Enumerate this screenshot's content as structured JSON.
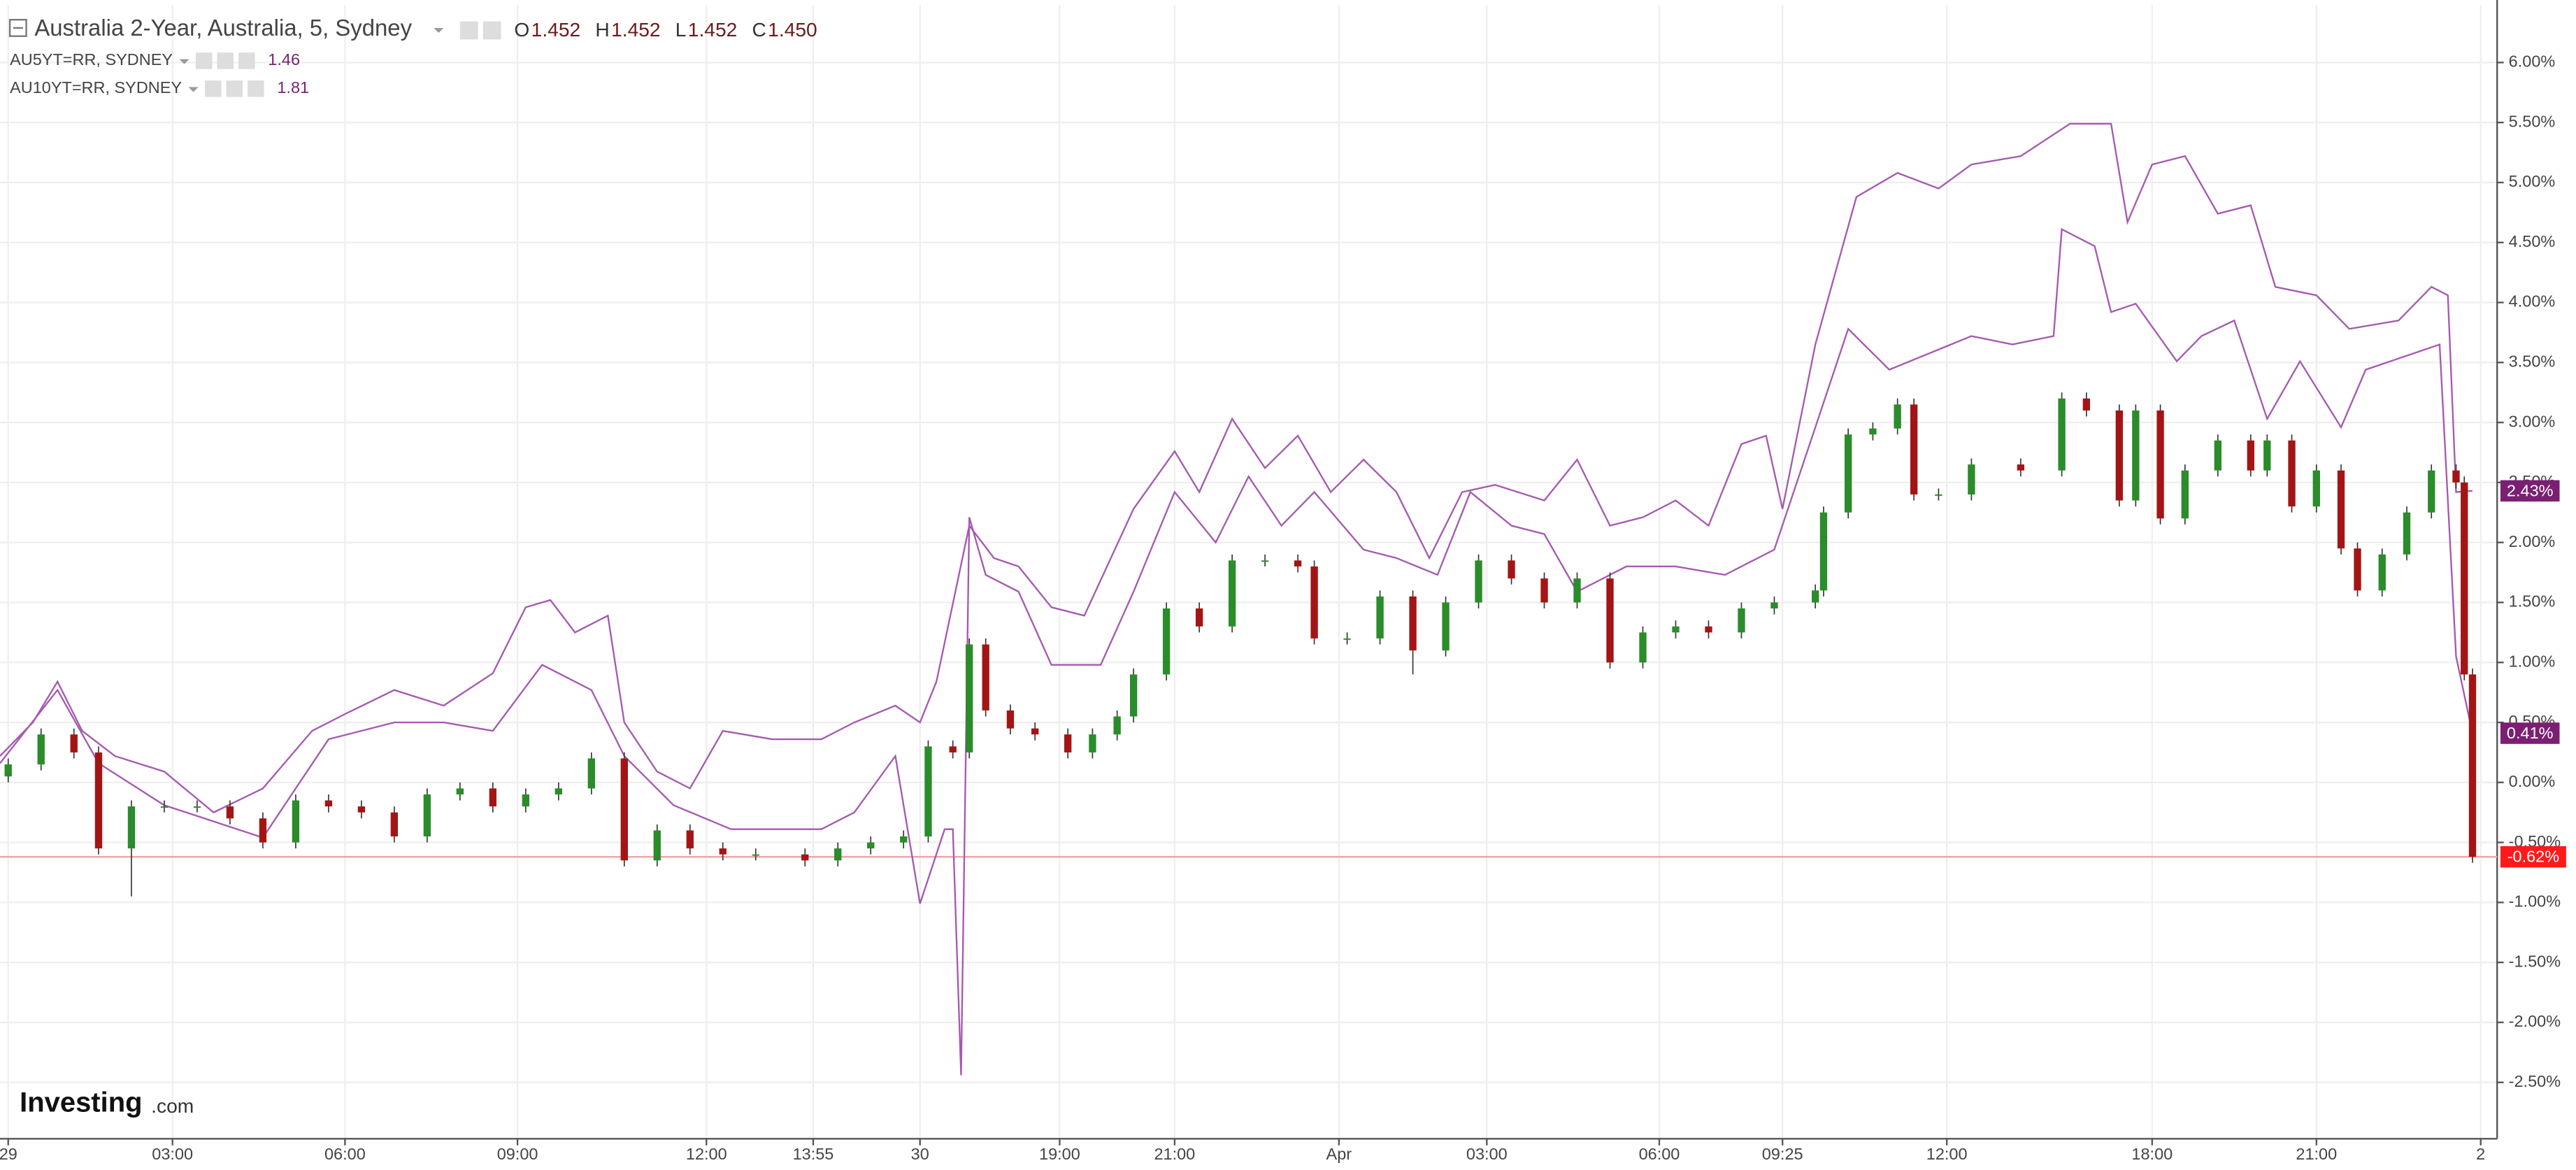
{
  "chart_data": {
    "type": "candlestick",
    "title": "Australia 2-Year, Australia, 5, Sydney",
    "ohlc": [
      {
        "key": "O",
        "value": "1.452"
      },
      {
        "key": "H",
        "value": "1.452"
      },
      {
        "key": "L",
        "value": "1.452"
      },
      {
        "key": "C",
        "value": "1.450"
      }
    ],
    "logo": [
      "Investing",
      ".com"
    ],
    "grid": true,
    "xlim": [
      0,
      304
    ],
    "xticks": [
      {
        "value": 1,
        "label": "29"
      },
      {
        "value": 21,
        "label": "03:00"
      },
      {
        "value": 42,
        "label": "06:00"
      },
      {
        "value": 63,
        "label": "09:00"
      },
      {
        "value": 86,
        "label": "12:00"
      },
      {
        "value": 99,
        "label": "13:55"
      },
      {
        "value": 112,
        "label": "30"
      },
      {
        "value": 129,
        "label": "19:00"
      },
      {
        "value": 143,
        "label": "21:00"
      },
      {
        "value": 163,
        "label": "Apr"
      },
      {
        "value": 181,
        "label": "03:00"
      },
      {
        "value": 202,
        "label": "06:00"
      },
      {
        "value": 217,
        "label": "09:25"
      },
      {
        "value": 237,
        "label": "12:00"
      },
      {
        "value": 262,
        "label": "18:00"
      },
      {
        "value": 282,
        "label": "21:00"
      },
      {
        "value": 302,
        "label": "2"
      }
    ],
    "ylim": [
      -2.97,
      6.48
    ],
    "yticks": [
      {
        "value": 6,
        "label": "6.00%"
      },
      {
        "value": 5.5,
        "label": "5.50%"
      },
      {
        "value": 5,
        "label": "5.00%"
      },
      {
        "value": 4.5,
        "label": "4.50%"
      },
      {
        "value": 4,
        "label": "4.00%"
      },
      {
        "value": 3.5,
        "label": "3.50%"
      },
      {
        "value": 3,
        "label": "3.00%"
      },
      {
        "value": 2.5,
        "label": "2.50%"
      },
      {
        "value": 2,
        "label": "2.00%"
      },
      {
        "value": 1.5,
        "label": "1.50%"
      },
      {
        "value": 1,
        "label": "1.00%"
      },
      {
        "value": 0.5,
        "label": "0.50%"
      },
      {
        "value": 0,
        "label": "0.00%"
      },
      {
        "value": -0.5,
        "label": "-0.50%"
      },
      {
        "value": -1,
        "label": "-1.00%"
      },
      {
        "value": -1.5,
        "label": "-1.50%"
      },
      {
        "value": -2,
        "label": "-2.00%"
      },
      {
        "value": -2.5,
        "label": "-2.50%"
      }
    ],
    "candles": {
      "up_color": "#2a8c2a",
      "down_color": "#a31515",
      "last_label": "-0.62%",
      "last_color": "#ff1a1a",
      "x": [
        1,
        5,
        9,
        12,
        16,
        20,
        24,
        28,
        32,
        36,
        40,
        44,
        48,
        52,
        56,
        60,
        64,
        68,
        72,
        76,
        80,
        84,
        88,
        92,
        98,
        102,
        106,
        110,
        113,
        116,
        118,
        120,
        123,
        126,
        130,
        133,
        136,
        138,
        142,
        146,
        150,
        154,
        158,
        160,
        164,
        168,
        172,
        176,
        180,
        184,
        188,
        192,
        196,
        200,
        204,
        208,
        212,
        216,
        221,
        222,
        225,
        228,
        231,
        233,
        236,
        240,
        246,
        251,
        254,
        258,
        260,
        263,
        266,
        270,
        274,
        276,
        279,
        282,
        285,
        287,
        290,
        293,
        296,
        299,
        300,
        301
      ],
      "open": [
        0.05,
        0.15,
        0.4,
        0.25,
        -0.55,
        -0.2,
        -0.2,
        -0.2,
        -0.3,
        -0.5,
        -0.15,
        -0.2,
        -0.25,
        -0.45,
        -0.1,
        -0.05,
        -0.2,
        -0.1,
        -0.05,
        0.2,
        -0.65,
        -0.4,
        -0.55,
        -0.6,
        -0.6,
        -0.65,
        -0.55,
        -0.5,
        -0.45,
        0.3,
        0.25,
        1.15,
        0.6,
        0.45,
        0.4,
        0.25,
        0.4,
        0.55,
        0.9,
        1.45,
        1.3,
        1.85,
        1.85,
        1.8,
        1.2,
        1.2,
        1.55,
        1.1,
        1.5,
        1.85,
        1.7,
        1.5,
        1.7,
        1.0,
        1.25,
        1.3,
        1.25,
        1.45,
        1.5,
        1.6,
        2.25,
        2.9,
        2.95,
        3.15,
        2.4,
        2.4,
        2.65,
        2.6,
        3.2,
        3.1,
        2.35,
        3.1,
        2.2,
        2.6,
        2.85,
        2.6,
        2.85,
        2.3,
        2.6,
        1.95,
        1.6,
        1.9,
        2.25,
        2.6,
        2.5,
        0.9
      ],
      "high": [
        0.2,
        0.45,
        0.45,
        0.3,
        -0.15,
        -0.15,
        -0.15,
        -0.15,
        -0.25,
        -0.1,
        -0.1,
        -0.15,
        -0.2,
        -0.05,
        0,
        0,
        -0.05,
        0,
        0.25,
        0.25,
        -0.35,
        -0.35,
        -0.5,
        -0.55,
        -0.55,
        -0.5,
        -0.45,
        -0.4,
        0.35,
        0.35,
        1.2,
        1.2,
        0.65,
        0.5,
        0.45,
        0.45,
        0.6,
        0.95,
        1.5,
        1.5,
        1.9,
        1.9,
        1.9,
        1.85,
        1.25,
        1.6,
        1.6,
        1.55,
        1.9,
        1.9,
        1.75,
        1.75,
        1.75,
        1.3,
        1.35,
        1.35,
        1.5,
        1.55,
        1.65,
        2.3,
        2.95,
        3.0,
        3.2,
        3.2,
        2.45,
        2.7,
        2.7,
        3.25,
        3.25,
        3.15,
        3.15,
        3.15,
        2.65,
        2.9,
        2.9,
        2.9,
        2.9,
        2.65,
        2.65,
        2.0,
        1.95,
        2.3,
        2.65,
        2.65,
        2.55,
        0.95
      ],
      "low": [
        0,
        0.1,
        0.2,
        -0.6,
        -0.95,
        -0.25,
        -0.25,
        -0.35,
        -0.55,
        -0.55,
        -0.25,
        -0.3,
        -0.5,
        -0.5,
        -0.15,
        -0.25,
        -0.25,
        -0.15,
        -0.1,
        -0.7,
        -0.7,
        -0.6,
        -0.65,
        -0.65,
        -0.7,
        -0.7,
        -0.6,
        -0.55,
        -0.5,
        0.2,
        0.2,
        0.55,
        0.4,
        0.35,
        0.2,
        0.2,
        0.35,
        0.5,
        0.85,
        1.25,
        1.25,
        1.8,
        1.75,
        1.15,
        1.15,
        1.15,
        0.9,
        1.05,
        1.45,
        1.65,
        1.45,
        1.45,
        0.95,
        0.95,
        1.2,
        1.2,
        1.2,
        1.4,
        1.45,
        1.55,
        2.2,
        2.85,
        2.9,
        2.35,
        2.35,
        2.35,
        2.55,
        2.55,
        3.05,
        2.3,
        2.3,
        2.15,
        2.15,
        2.55,
        2.55,
        2.55,
        2.25,
        2.25,
        1.9,
        1.55,
        1.55,
        1.85,
        2.2,
        2.45,
        0.85,
        -0.67
      ],
      "close": [
        0.15,
        0.4,
        0.25,
        -0.55,
        -0.2,
        -0.2,
        -0.2,
        -0.3,
        -0.5,
        -0.15,
        -0.2,
        -0.25,
        -0.45,
        -0.1,
        -0.05,
        -0.2,
        -0.1,
        -0.05,
        0.2,
        -0.65,
        -0.4,
        -0.55,
        -0.6,
        -0.6,
        -0.65,
        -0.55,
        -0.5,
        -0.45,
        0.3,
        0.25,
        1.15,
        0.6,
        0.45,
        0.4,
        0.25,
        0.4,
        0.55,
        0.9,
        1.45,
        1.3,
        1.85,
        1.85,
        1.8,
        1.2,
        1.2,
        1.55,
        1.1,
        1.5,
        1.85,
        1.7,
        1.5,
        1.7,
        1.0,
        1.25,
        1.3,
        1.25,
        1.45,
        1.5,
        1.6,
        2.25,
        2.9,
        2.95,
        3.15,
        2.4,
        2.4,
        2.65,
        2.6,
        3.2,
        3.1,
        2.35,
        3.1,
        2.2,
        2.6,
        2.85,
        2.6,
        2.85,
        2.3,
        2.6,
        1.95,
        1.6,
        1.9,
        2.25,
        2.6,
        2.5,
        0.9,
        -0.62
      ]
    },
    "series": [
      {
        "name": "AU5YT=RR, SYDNEY",
        "legend_value": "1.46",
        "color": "#a55ab0",
        "last_label": "0.41%",
        "label_color": "#7b1f73",
        "x": [
          0,
          7,
          12,
          20,
          32,
          40,
          48,
          54,
          60,
          66,
          72,
          76,
          82,
          89,
          94,
          100,
          104,
          109,
          111,
          112,
          115,
          116,
          117,
          118,
          120,
          124,
          128,
          134,
          138,
          143,
          148,
          152,
          156,
          160,
          166,
          170,
          175,
          179,
          184,
          188,
          192,
          198,
          204,
          210,
          216,
          221,
          225,
          230,
          235,
          240,
          245,
          250,
          251,
          255,
          257,
          260,
          265,
          268,
          272,
          276,
          280,
          285,
          288,
          294,
          297,
          299,
          301
        ],
        "values": [
          0.16,
          0.77,
          0.16,
          -0.19,
          -0.46,
          0.36,
          0.5,
          0.5,
          0.43,
          0.98,
          0.77,
          0.22,
          -0.19,
          -0.39,
          -0.39,
          -0.39,
          -0.25,
          0.22,
          -0.6,
          -1.01,
          -0.39,
          -0.39,
          -2.44,
          2.21,
          1.73,
          1.59,
          0.98,
          0.98,
          1.59,
          2.42,
          2.0,
          2.55,
          2.14,
          2.42,
          1.94,
          1.87,
          1.73,
          2.42,
          2.14,
          2.07,
          1.59,
          1.8,
          1.8,
          1.73,
          1.94,
          2.96,
          3.78,
          3.44,
          3.58,
          3.72,
          3.65,
          3.72,
          4.61,
          4.47,
          3.92,
          3.99,
          3.51,
          3.72,
          3.85,
          3.03,
          3.51,
          2.96,
          3.44,
          3.58,
          3.65,
          1.05,
          0.41
        ]
      },
      {
        "name": "AU10YT=RR, SYDNEY",
        "legend_value": "1.81",
        "color": "#a55ab0",
        "last_label": "2.43%",
        "label_color": "#7b1f73",
        "x": [
          0,
          4,
          7,
          10,
          14,
          20,
          26,
          32,
          38,
          42,
          48,
          54,
          60,
          64,
          67,
          70,
          74,
          76,
          80,
          84,
          88,
          94,
          100,
          104,
          109,
          112,
          114,
          118,
          121,
          124,
          128,
          132,
          138,
          143,
          146,
          150,
          154,
          158,
          162,
          166,
          170,
          174,
          178,
          182,
          188,
          192,
          196,
          200,
          204,
          208,
          212,
          215,
          217,
          221,
          226,
          231,
          236,
          240,
          246,
          252,
          257,
          259,
          262,
          266,
          270,
          274,
          277,
          282,
          286,
          292,
          296,
          298,
          299,
          301
        ],
        "values": [
          0.22,
          0.5,
          0.84,
          0.43,
          0.22,
          0.09,
          -0.25,
          -0.05,
          0.43,
          0.57,
          0.77,
          0.64,
          0.91,
          1.46,
          1.52,
          1.25,
          1.39,
          0.5,
          0.09,
          -0.05,
          0.43,
          0.36,
          0.36,
          0.5,
          0.64,
          0.5,
          0.84,
          2.14,
          1.87,
          1.8,
          1.46,
          1.39,
          2.28,
          2.76,
          2.42,
          3.03,
          2.62,
          2.89,
          2.42,
          2.69,
          2.42,
          1.87,
          2.42,
          2.48,
          2.35,
          2.69,
          2.14,
          2.21,
          2.35,
          2.14,
          2.82,
          2.89,
          2.28,
          3.65,
          4.88,
          5.08,
          4.95,
          5.15,
          5.22,
          5.49,
          5.49,
          4.67,
          5.15,
          5.22,
          4.74,
          4.81,
          4.13,
          4.06,
          3.78,
          3.85,
          4.13,
          4.06,
          2.42,
          2.43
        ]
      }
    ]
  }
}
